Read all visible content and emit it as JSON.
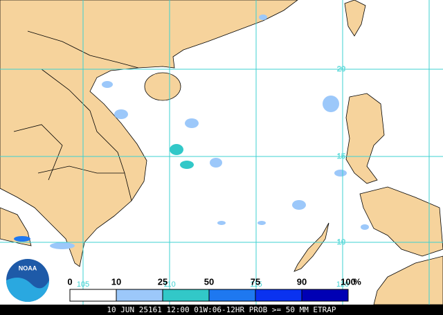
{
  "map": {
    "lon_labels": [
      "105",
      "110",
      "115",
      "120"
    ],
    "lat_labels": [
      "20",
      "15",
      "10"
    ],
    "land_color": "#f6d39c",
    "ocean_color": "#ffffff",
    "grid_color": "#3cd2d2"
  },
  "legend": {
    "labels": [
      "0",
      "10",
      "25",
      "50",
      "75",
      "90",
      "100"
    ],
    "unit": "%",
    "colors": [
      "#ffffff",
      "#9cc8fa",
      "#32c8c8",
      "#1e78f0",
      "#0a32f0",
      "#0000b4"
    ]
  },
  "logo": "NOAA",
  "footer": "10 JUN 25161 12:00 01W:06-12HR PROB >= 50 MM ETRAP"
}
